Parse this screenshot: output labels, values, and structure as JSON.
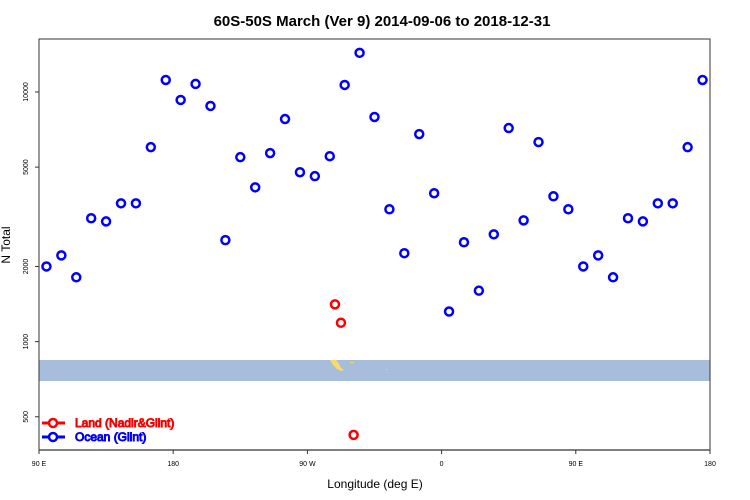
{
  "chart_data": {
    "type": "scatter",
    "title": "60S-50S March (Ver 9)   2014-09-06 to 2018-12-31",
    "xlabel": "Longitude (deg E)",
    "ylabel": "N Total",
    "y_scale": "log",
    "ylim": [
      368,
      16300
    ],
    "xlim_deg_east_wrapped": [
      90,
      540
    ],
    "x_ticks": [
      {
        "value": 90,
        "label": "90 E"
      },
      {
        "value": 180,
        "label": "180"
      },
      {
        "value": 270,
        "label": "90 W"
      },
      {
        "value": 360,
        "label": "0"
      },
      {
        "value": 450,
        "label": "90 E"
      },
      {
        "value": 540,
        "label": "180"
      }
    ],
    "y_ticks": [
      {
        "value": 500,
        "label": "500"
      },
      {
        "value": 1000,
        "label": "1000"
      },
      {
        "value": 2000,
        "label": "2000"
      },
      {
        "value": 5000,
        "label": "5000"
      },
      {
        "value": 10000,
        "label": "10000"
      }
    ],
    "grid": false,
    "legend_position": "bottom-left",
    "series": [
      {
        "name": "Land (Nadir&Glint)",
        "color": "#ff0000",
        "lon": [
          -71.5,
          -67.5,
          -59
        ],
        "values": [
          1410,
          1190,
          423
        ]
      },
      {
        "name": "Ocean (Glint)",
        "color": "#0000ff",
        "lon": [
          95,
          105,
          115,
          125,
          135,
          145,
          155,
          165,
          175,
          -175,
          -165,
          -155,
          -145,
          -135,
          -125,
          -115,
          -105,
          -95,
          -85,
          -75,
          -65,
          -55,
          -45,
          -35,
          -25,
          -15,
          -5,
          5,
          15,
          25,
          35,
          45,
          55,
          65,
          75,
          85
        ],
        "values": [
          2000,
          2215,
          1810,
          3120,
          3030,
          3580,
          3580,
          6010,
          11170,
          9290,
          10770,
          8790,
          2550,
          5480,
          4150,
          5690,
          7790,
          4770,
          4600,
          5530,
          10670,
          14350,
          7940,
          3390,
          2260,
          6780,
          3930,
          1320,
          2500,
          1600,
          2690,
          7170,
          3060,
          6300,
          3820,
          3390
        ]
      }
    ],
    "map_strip": {
      "ocean_color": "#a7bddc",
      "land_color": "#ffd966"
    }
  }
}
